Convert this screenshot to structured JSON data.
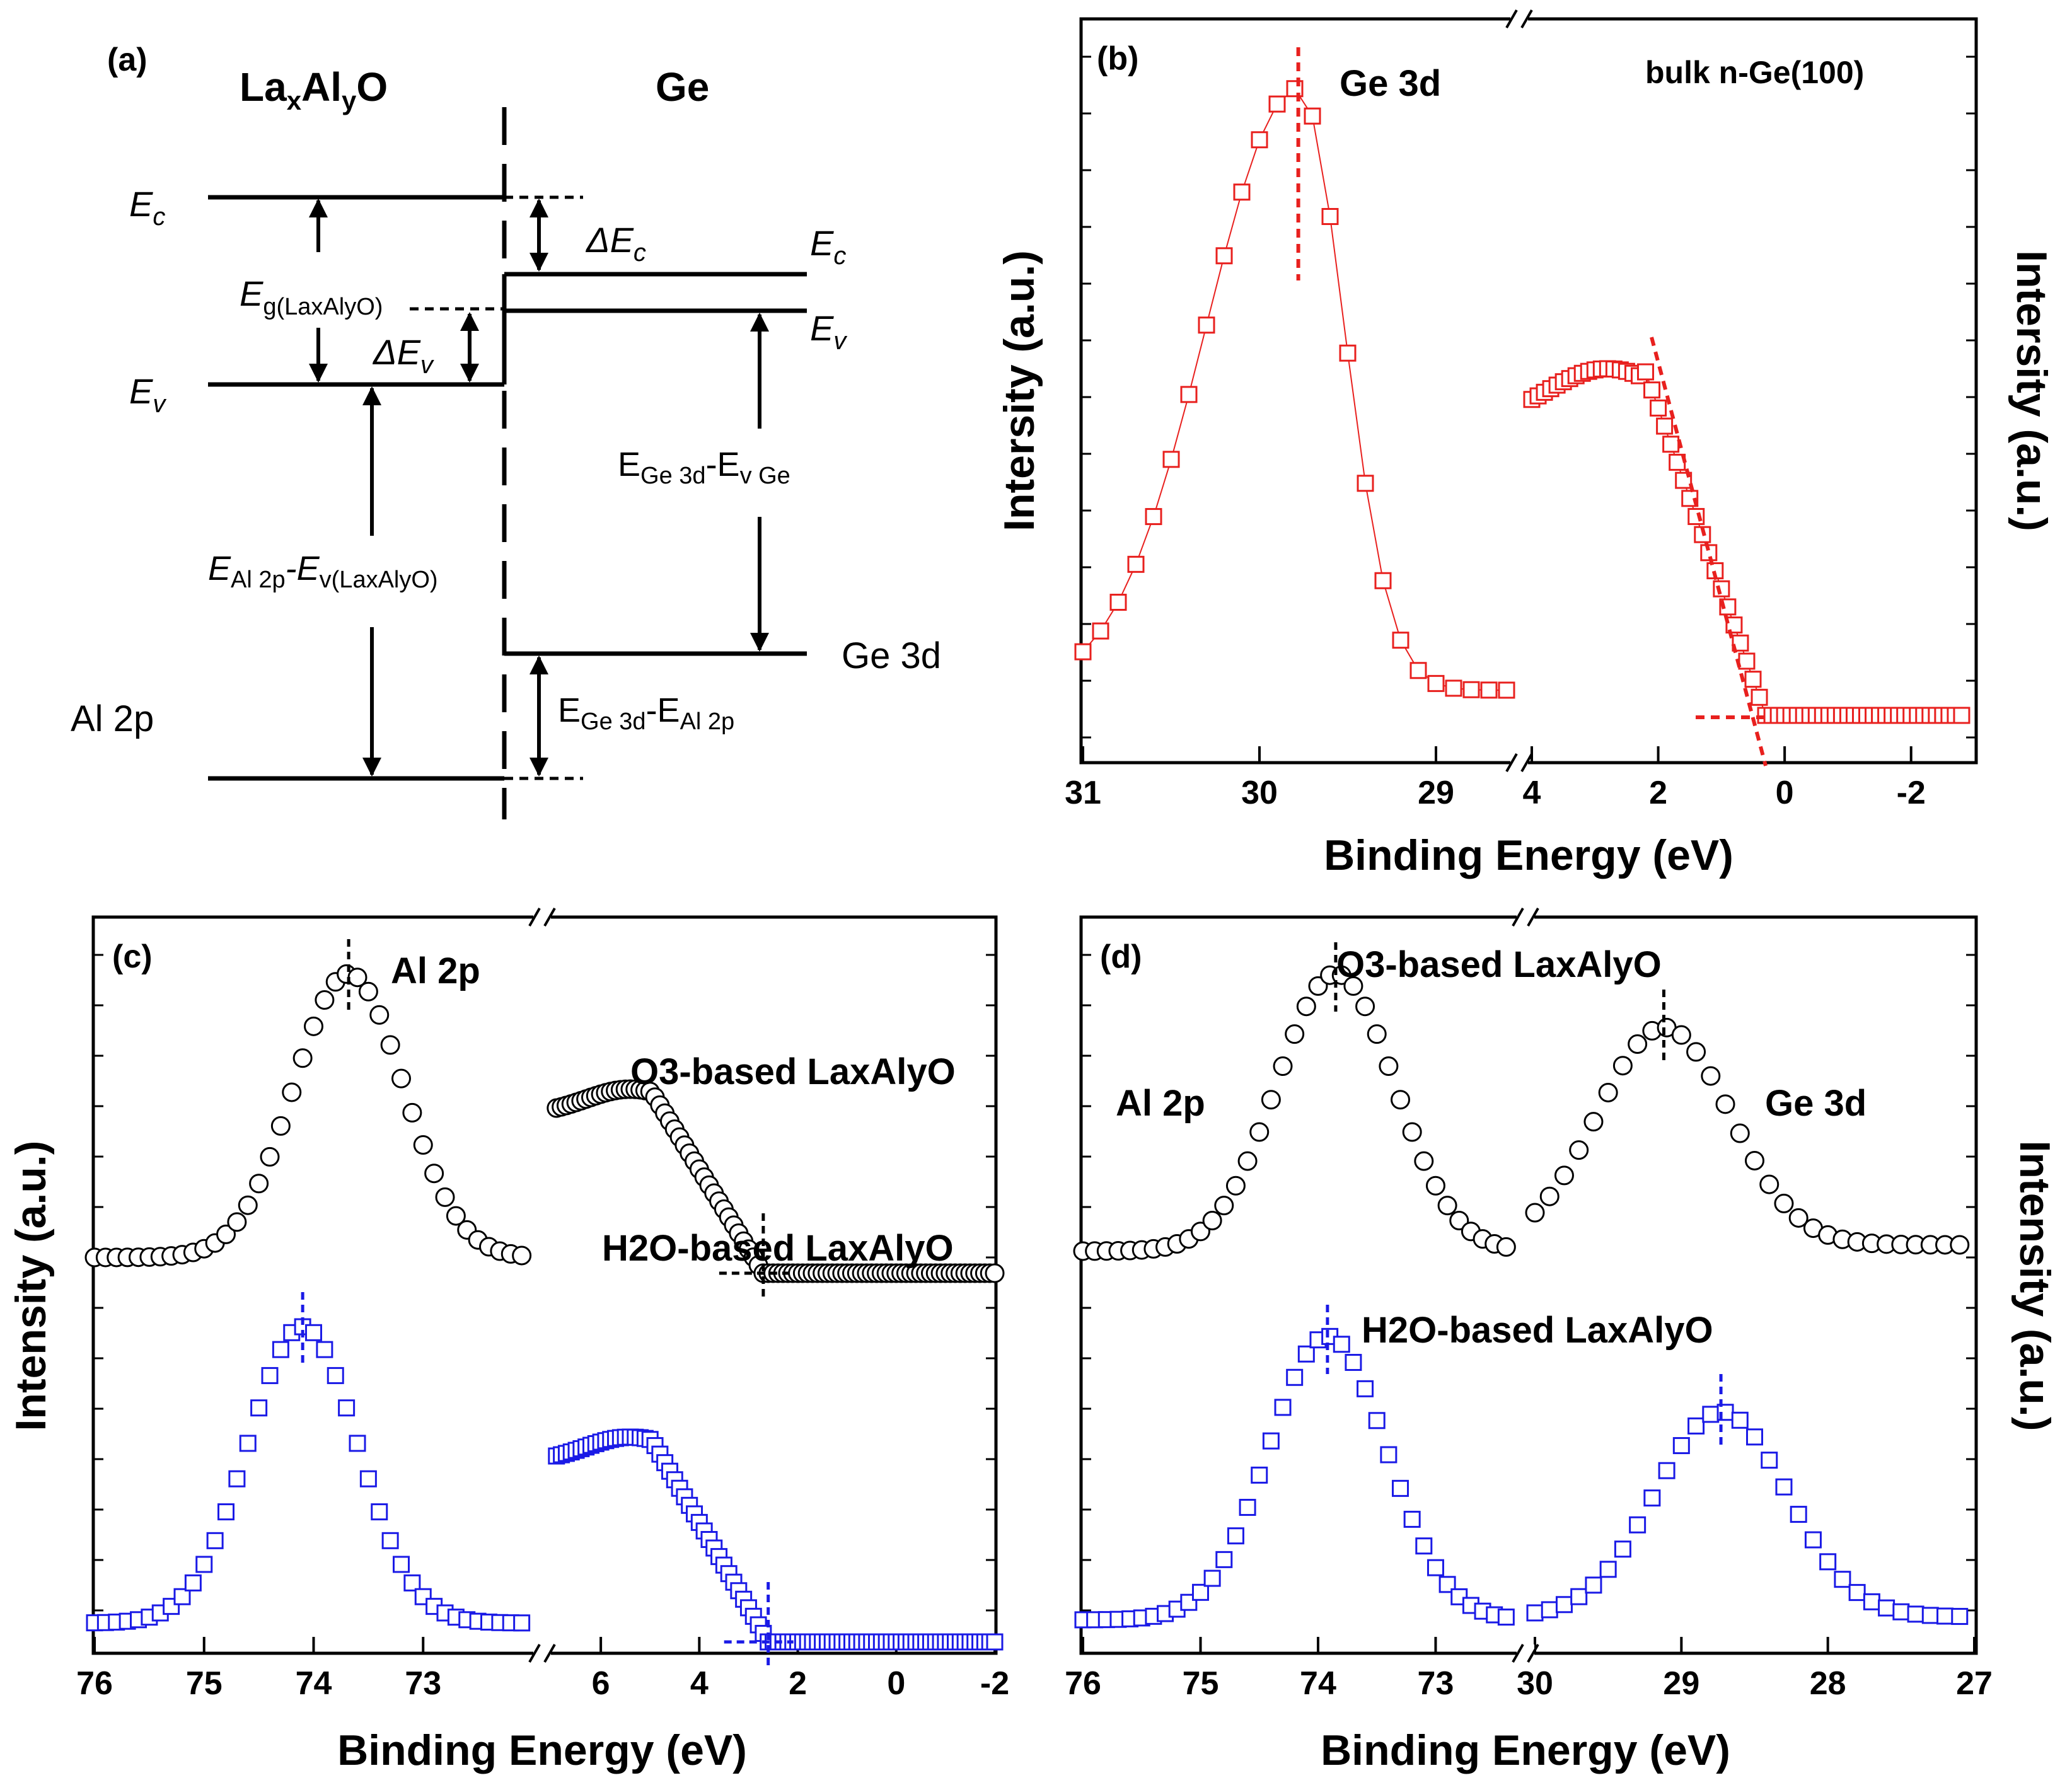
{
  "chart_data": [
    {
      "type": "diagram",
      "panel": "(a)",
      "title_left": {
        "main": "La",
        "sub1": "x",
        "mid": "Al",
        "sub2": "y",
        "end": "O"
      },
      "title_right": "Ge",
      "labels": {
        "ec_left": {
          "main": "E",
          "sub": "c"
        },
        "ev_left": {
          "main": "E",
          "sub": "v"
        },
        "eg": {
          "main": "E",
          "sub": "g(LaxAlyO)"
        },
        "dev": {
          "main": "ΔE",
          "sub": "v"
        },
        "dec": {
          "main": "ΔE",
          "sub": "c"
        },
        "ec_right": {
          "main": "E",
          "sub": "c"
        },
        "ev_right": {
          "main": "E",
          "sub": "v"
        },
        "eal": {
          "m1": "E",
          "s1": "Al 2p",
          "mid": "-E",
          "s2": "v(LaxAlyO)"
        },
        "ege_ev": {
          "m1": "E",
          "s1": "Ge 3d",
          "mid": "-E",
          "s2": "v Ge"
        },
        "ege_al": {
          "m1": "E",
          "s1": "Ge 3d",
          "mid": "-E",
          "s2": "Al 2p"
        },
        "al2p": "Al 2p",
        "ge3d": "Ge 3d"
      }
    },
    {
      "type": "scatter",
      "panel": "(b)",
      "xlabel": "Binding Energy (eV)",
      "ylabel": "Intersity (a.u.)",
      "ylabel_right": "Intersity (a.u.)",
      "annotations": {
        "peak": "Ge 3d",
        "sample": "bulk n-Ge(100)"
      },
      "series_color": "#e8201e",
      "segments": [
        {
          "xlim": [
            31,
            28.6
          ],
          "ticks": [
            31,
            30,
            29
          ]
        },
        {
          "xlim": [
            4,
            -3
          ],
          "ticks": [
            4,
            2,
            0,
            -2
          ]
        }
      ],
      "peak_position": 29.78,
      "vbm_intercept": 0.3
    },
    {
      "type": "scatter",
      "panel": "(c)",
      "xlabel": "Binding Energy (eV)",
      "ylabel": "Intensity (a.u.)",
      "annotations": {
        "peak": "Al 2p",
        "o3": "O3-based LaxAlyO",
        "h2o": "H2O-based LaxAlyO"
      },
      "series": [
        {
          "name": "O3-based LaxAlyO",
          "color": "#000000",
          "marker": "circle",
          "al2p_peak": 73.68,
          "vbm": 2.7
        },
        {
          "name": "H2O-based LaxAlyO",
          "color": "#1a1ae6",
          "marker": "square",
          "al2p_peak": 74.1,
          "vbm": 2.6
        }
      ],
      "segments": [
        {
          "xlim": [
            76,
            72
          ],
          "ticks": [
            76,
            75,
            74,
            73
          ]
        },
        {
          "xlim": [
            7,
            -2
          ],
          "ticks": [
            6,
            4,
            2,
            0,
            -2
          ]
        }
      ]
    },
    {
      "type": "scatter",
      "panel": "(d)",
      "xlabel": "Binding Energy (eV)",
      "ylabel": "Intensity (a.u.)",
      "annotations": {
        "al": "Al 2p",
        "ge": "Ge 3d",
        "o3": "O3-based LaxAlyO",
        "h2o": "H2O-based LaxAlyO"
      },
      "series": [
        {
          "name": "O3-based LaxAlyO",
          "color": "#000000",
          "marker": "circle",
          "al2p_peak": 73.85,
          "ge3d_peak": 29.12
        },
        {
          "name": "H2O-based LaxAlyO",
          "color": "#1a1ae6",
          "marker": "square",
          "al2p_peak": 73.92,
          "ge3d_peak": 28.73
        }
      ],
      "segments": [
        {
          "xlim": [
            76,
            72.3
          ],
          "ticks": [
            76,
            75,
            74,
            73
          ]
        },
        {
          "xlim": [
            30,
            27
          ],
          "ticks": [
            30,
            29,
            28,
            27
          ]
        }
      ]
    }
  ]
}
